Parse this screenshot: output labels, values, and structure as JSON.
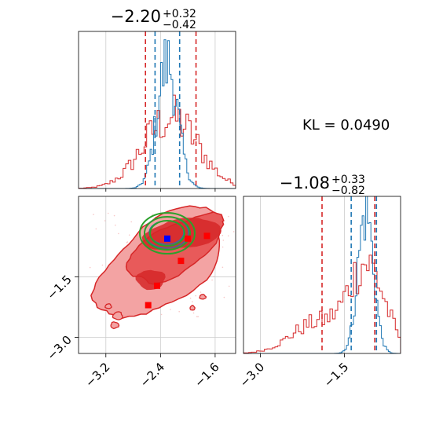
{
  "chart_data": {
    "type": "corner",
    "kl_annotation": "KL = 0.0490",
    "colors": {
      "blue": "#1f77b4",
      "red": "#d62728",
      "red_fill": "#e85a5a",
      "red_light": "#f3a3a3",
      "green": "#2ca02c",
      "grid": "#cccccc",
      "marker_red": "#ff0000",
      "marker_blue": "#0000ff"
    },
    "panels": [
      {
        "id": "hist-param1",
        "type": "histogram",
        "title": {
          "value": "−2.20",
          "upper": "+0.32",
          "lower": "−0.42"
        },
        "xlim": [
          -3.6,
          -1.3
        ],
        "grid_x": [
          -3.2,
          -2.4,
          -1.6
        ],
        "quantiles_blue": [
          -2.48,
          -2.12
        ],
        "quantiles_red": [
          -2.62,
          -1.88
        ],
        "series": [
          {
            "color": "blue",
            "center": -2.3,
            "sigma": 0.15
          },
          {
            "color": "red",
            "center": -2.25,
            "sigma": 0.4
          }
        ]
      },
      {
        "id": "hist-param2",
        "type": "histogram",
        "title": {
          "value": "−1.08",
          "upper": "+0.33",
          "lower": "−0.82"
        },
        "xlim": [
          -3.3,
          -0.5
        ],
        "grid_x": [
          -3.0,
          -1.5
        ],
        "x_ticks": [
          "−3.0",
          "−1.5"
        ],
        "x_tick_values": [
          -3.0,
          -1.5
        ],
        "quantiles_blue": [
          -1.38,
          -0.93
        ],
        "quantiles_red": [
          -1.9,
          -0.96
        ],
        "series": [
          {
            "color": "blue",
            "center": -1.12,
            "sigma": 0.14
          },
          {
            "color": "red",
            "center": -1.1,
            "sigma": 0.32
          }
        ]
      },
      {
        "id": "joint-param1-param2",
        "type": "contour",
        "xlim": [
          -3.6,
          -1.3
        ],
        "ylim": [
          -3.4,
          0.5
        ],
        "x_ticks": [
          "−3.2",
          "−2.4",
          "−1.6"
        ],
        "x_tick_values": [
          -3.2,
          -2.4,
          -1.6
        ],
        "y_ticks": [
          "−1.5",
          "−3.0"
        ],
        "y_tick_values": [
          -1.5,
          -3.0
        ],
        "markers_red": [
          [
            -2.58,
            -2.2
          ],
          [
            -2.45,
            -1.72
          ],
          [
            -2.1,
            -1.1
          ],
          [
            -2.0,
            -0.55
          ],
          [
            -1.72,
            -0.48
          ]
        ],
        "marker_blue": [
          -2.3,
          -0.55
        ]
      }
    ]
  }
}
